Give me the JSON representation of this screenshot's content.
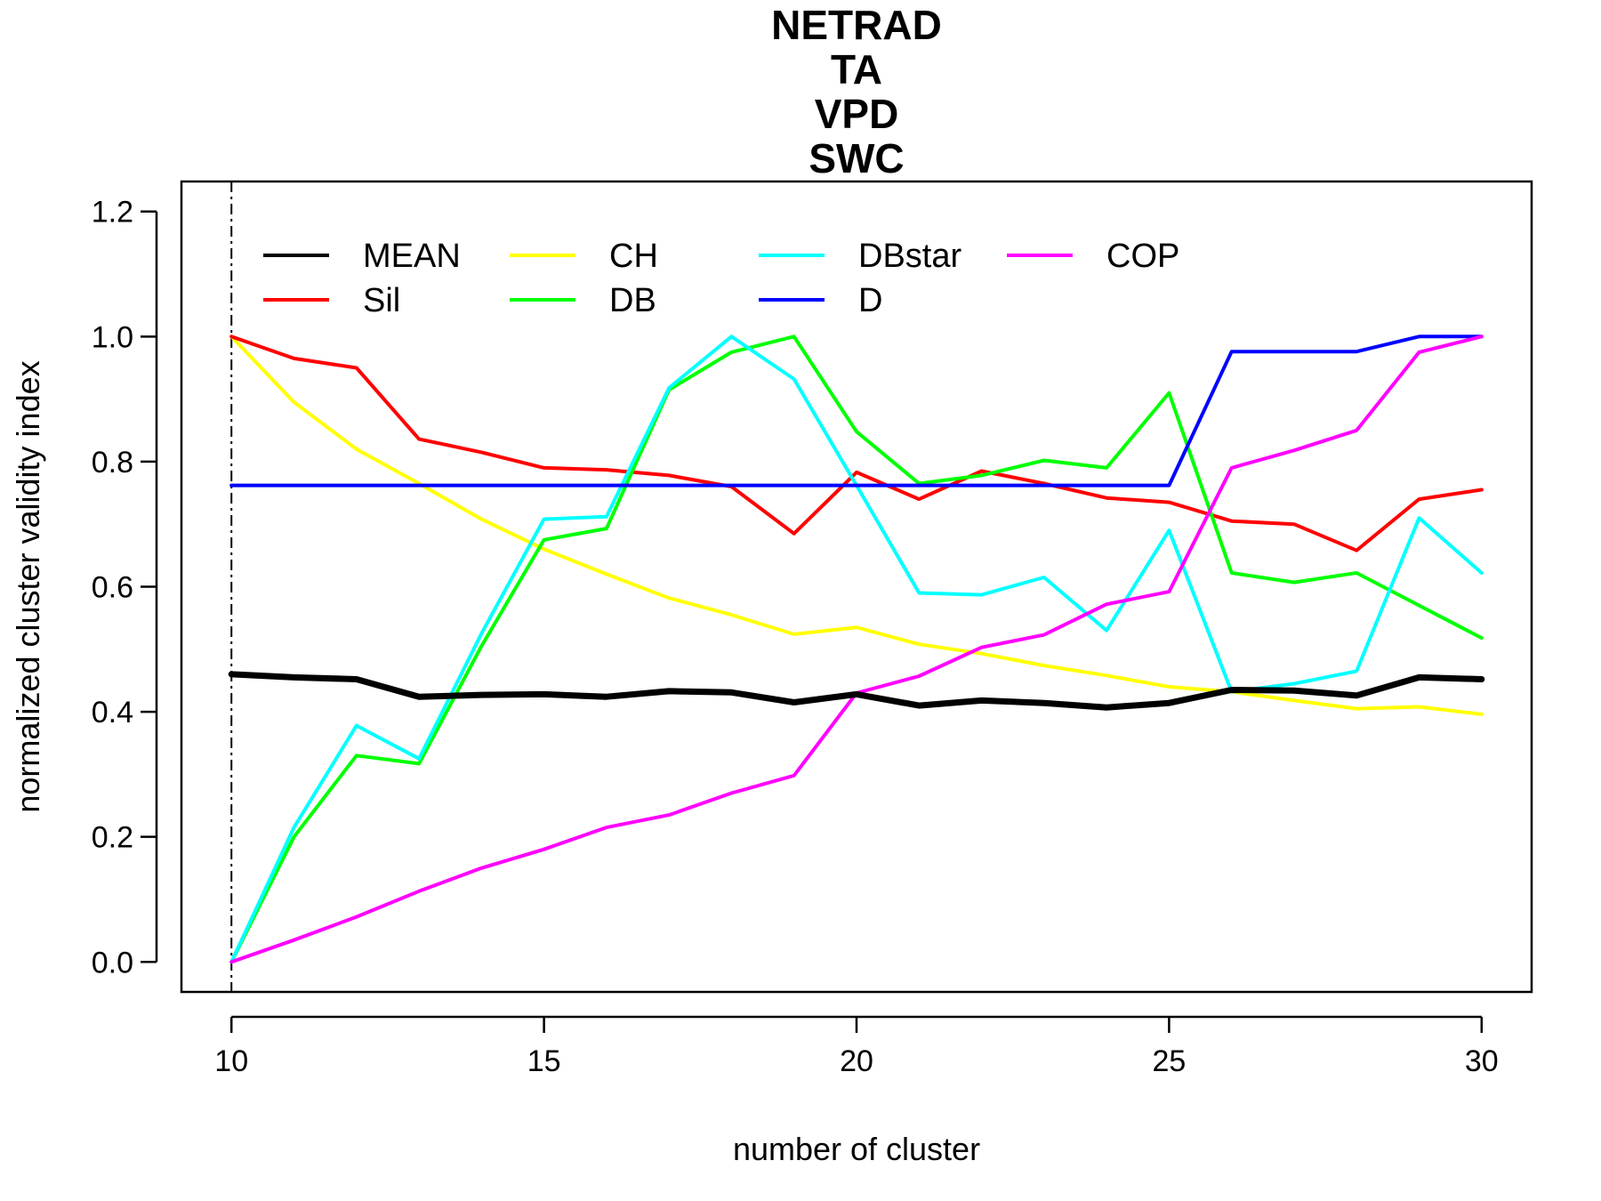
{
  "chart_data": {
    "type": "line",
    "title_lines": [
      "NETRAD",
      "TA",
      "VPD",
      "SWC"
    ],
    "xlabel": "number of cluster",
    "ylabel": "normalized cluster validity index",
    "xlim": [
      9.2,
      30.8
    ],
    "ylim": [
      -0.048,
      1.248
    ],
    "x_ticks": [
      10,
      15,
      20,
      25,
      30
    ],
    "y_ticks": [
      0.0,
      0.2,
      0.4,
      0.6,
      0.8,
      1.0,
      1.2
    ],
    "y_tick_labels": [
      "0.0",
      "0.2",
      "0.4",
      "0.6",
      "0.8",
      "1.0",
      "1.2"
    ],
    "x_tick_labels": [
      "10",
      "15",
      "20",
      "25",
      "30"
    ],
    "grid": false,
    "vline": {
      "x": 10,
      "style": "dot-dash",
      "color": "#000000"
    },
    "legend": {
      "position": "top-left",
      "columns": 4
    },
    "x": [
      10,
      11,
      12,
      13,
      14,
      15,
      16,
      17,
      18,
      19,
      20,
      21,
      22,
      23,
      24,
      25,
      26,
      27,
      28,
      29,
      30
    ],
    "series": [
      {
        "name": "MEAN",
        "color": "#000000",
        "thick": true,
        "values": [
          0.46,
          0.455,
          0.452,
          0.424,
          0.427,
          0.428,
          0.424,
          0.433,
          0.431,
          0.415,
          0.428,
          0.41,
          0.418,
          0.414,
          0.407,
          0.414,
          0.435,
          0.434,
          0.426,
          0.455,
          0.452
        ]
      },
      {
        "name": "Sil",
        "color": "#ff0000",
        "values": [
          1.0,
          0.965,
          0.95,
          0.836,
          0.815,
          0.79,
          0.787,
          0.778,
          0.76,
          0.685,
          0.783,
          0.74,
          0.785,
          0.765,
          0.742,
          0.735,
          0.705,
          0.7,
          0.658,
          0.74,
          0.755
        ]
      },
      {
        "name": "CH",
        "color": "#ffff00",
        "values": [
          1.0,
          0.895,
          0.82,
          0.765,
          0.708,
          0.66,
          0.62,
          0.582,
          0.555,
          0.524,
          0.535,
          0.508,
          0.493,
          0.474,
          0.458,
          0.44,
          0.432,
          0.418,
          0.405,
          0.408,
          0.396
        ]
      },
      {
        "name": "DB",
        "color": "#00ff00",
        "values": [
          0.0,
          0.2,
          0.33,
          0.317,
          0.505,
          0.675,
          0.693,
          0.915,
          0.975,
          1.0,
          0.848,
          0.765,
          0.778,
          0.802,
          0.79,
          0.91,
          0.622,
          0.607,
          0.622,
          0.57,
          0.518
        ]
      },
      {
        "name": "DBstar",
        "color": "#00ffff",
        "values": [
          0.0,
          0.215,
          0.378,
          0.325,
          0.525,
          0.708,
          0.712,
          0.918,
          1.0,
          0.932,
          0.762,
          0.59,
          0.587,
          0.615,
          0.53,
          0.69,
          0.432,
          0.445,
          0.465,
          0.71,
          0.622
        ]
      },
      {
        "name": "D",
        "color": "#0000ff",
        "values": [
          0.762,
          0.762,
          0.762,
          0.762,
          0.762,
          0.762,
          0.762,
          0.762,
          0.762,
          0.762,
          0.762,
          0.762,
          0.762,
          0.762,
          0.762,
          0.762,
          0.976,
          0.976,
          0.976,
          1.0,
          1.0
        ]
      },
      {
        "name": "COP",
        "color": "#ff00ff",
        "values": [
          0.0,
          0.035,
          0.072,
          0.113,
          0.15,
          0.18,
          0.215,
          0.235,
          0.27,
          0.298,
          0.43,
          0.457,
          0.503,
          0.523,
          0.572,
          0.592,
          0.79,
          0.818,
          0.85,
          0.975,
          1.0
        ]
      }
    ]
  }
}
